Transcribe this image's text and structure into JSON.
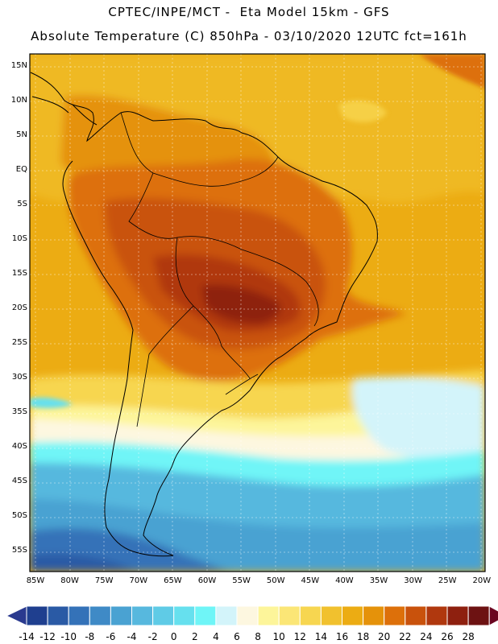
{
  "header": {
    "title_line1": "CPTEC/INPE/MCT -  Eta Model 15km - GFS",
    "title_line2": "Absolute Temperature (C) 850hPa - 03/10/2020 12UTC fct=161h"
  },
  "map": {
    "lat_labels": [
      "15N",
      "10N",
      "5N",
      "EQ",
      "5S",
      "10S",
      "15S",
      "20S",
      "25S",
      "30S",
      "35S",
      "40S",
      "45S",
      "50S",
      "55S"
    ],
    "lon_labels": [
      "85W",
      "80W",
      "75W",
      "70W",
      "65W",
      "60W",
      "55W",
      "50W",
      "45W",
      "40W",
      "35W",
      "30W",
      "25W",
      "20W"
    ]
  },
  "colorbar": {
    "labels": [
      "-14",
      "-12",
      "-10",
      "-8",
      "-6",
      "-4",
      "-2",
      "0",
      "2",
      "4",
      "6",
      "8",
      "10",
      "12",
      "14",
      "16",
      "18",
      "20",
      "22",
      "24",
      "26",
      "28"
    ],
    "colors": [
      "#1f3f8f",
      "#2a5aa5",
      "#3472b8",
      "#3f8ac6",
      "#4aa2d2",
      "#57b8de",
      "#5fcbe6",
      "#66e0ee",
      "#6ff5f7",
      "#d3f4fa",
      "#fdf7e0",
      "#fdf59a",
      "#fbe676",
      "#f7d650",
      "#f1c12e",
      "#ecac13",
      "#e5920a",
      "#dd700a",
      "#c9520c",
      "#b0380e",
      "#8e200f",
      "#6d1212"
    ],
    "under_color": "#2a3a8f",
    "over_color": "#6b0520"
  }
}
